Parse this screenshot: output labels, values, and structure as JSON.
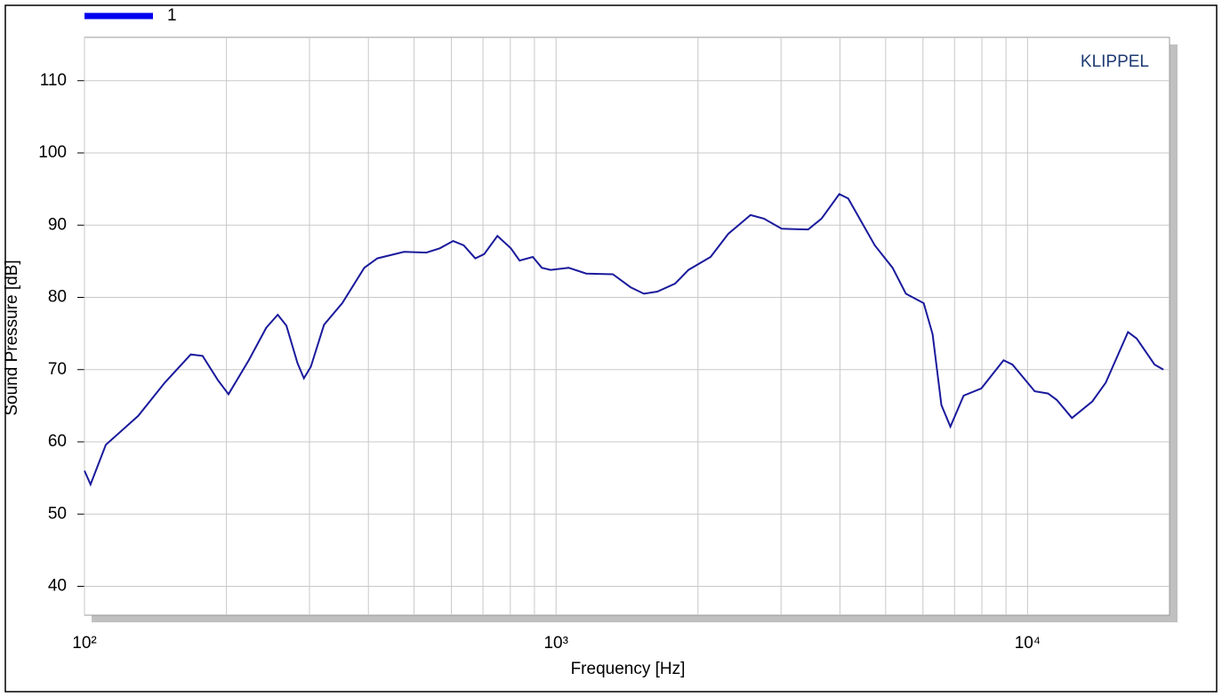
{
  "chart_data": {
    "type": "line",
    "annotation": "KLIPPEL",
    "xlabel": "Frequency  [Hz]",
    "ylabel": "Sound Pressure  [dB]",
    "xscale": "log",
    "xlim": [
      100,
      20000
    ],
    "ylim": [
      36,
      116
    ],
    "xticks": [
      {
        "value": 100,
        "label": "10²"
      },
      {
        "value": 1000,
        "label": "10³"
      },
      {
        "value": 10000,
        "label": "10⁴"
      }
    ],
    "xminorticks": [
      200,
      300,
      400,
      500,
      600,
      700,
      800,
      900,
      2000,
      3000,
      4000,
      5000,
      6000,
      7000,
      8000,
      9000
    ],
    "yticks": [
      40,
      50,
      60,
      70,
      80,
      90,
      100,
      110
    ],
    "grid": true,
    "legend": "top-left",
    "series": [
      {
        "name": "1",
        "color": "#1a1a9c",
        "x": [
          100,
          103,
          111,
          130,
          148,
          168,
          178,
          192,
          202,
          223,
          243,
          257,
          268,
          283,
          292,
          302,
          322,
          352,
          392,
          418,
          476,
          531,
          567,
          605,
          637,
          674,
          704,
          751,
          802,
          837,
          893,
          933,
          974,
          1063,
          1159,
          1320,
          1439,
          1536,
          1640,
          1788,
          1909,
          2127,
          2319,
          2585,
          2759,
          3009,
          3426,
          3656,
          3988,
          4165,
          4743,
          5172,
          5521,
          6022,
          6288,
          6566,
          6859,
          7318,
          7980,
          8895,
          9290,
          10354,
          11050,
          11538,
          12418,
          13720,
          14650,
          16330,
          17040,
          18590,
          19410
        ],
        "values": [
          56.0,
          54.1,
          59.6,
          63.6,
          68.2,
          72.1,
          71.9,
          68.5,
          66.6,
          71.3,
          75.8,
          77.6,
          76.1,
          70.9,
          68.8,
          70.4,
          76.2,
          79.2,
          84.1,
          85.4,
          86.3,
          86.2,
          86.8,
          87.8,
          87.2,
          85.4,
          86.0,
          88.5,
          86.8,
          85.1,
          85.6,
          84.1,
          83.8,
          84.1,
          83.3,
          83.2,
          81.4,
          80.5,
          80.8,
          81.9,
          83.8,
          85.6,
          88.8,
          91.4,
          90.9,
          89.5,
          89.4,
          90.9,
          94.3,
          93.7,
          87.2,
          84.1,
          80.5,
          79.2,
          74.9,
          65.1,
          62.1,
          66.4,
          67.4,
          71.3,
          70.7,
          67.0,
          66.7,
          65.8,
          63.3,
          65.6,
          68.2,
          75.2,
          74.3,
          70.7,
          70.0
        ]
      }
    ]
  }
}
